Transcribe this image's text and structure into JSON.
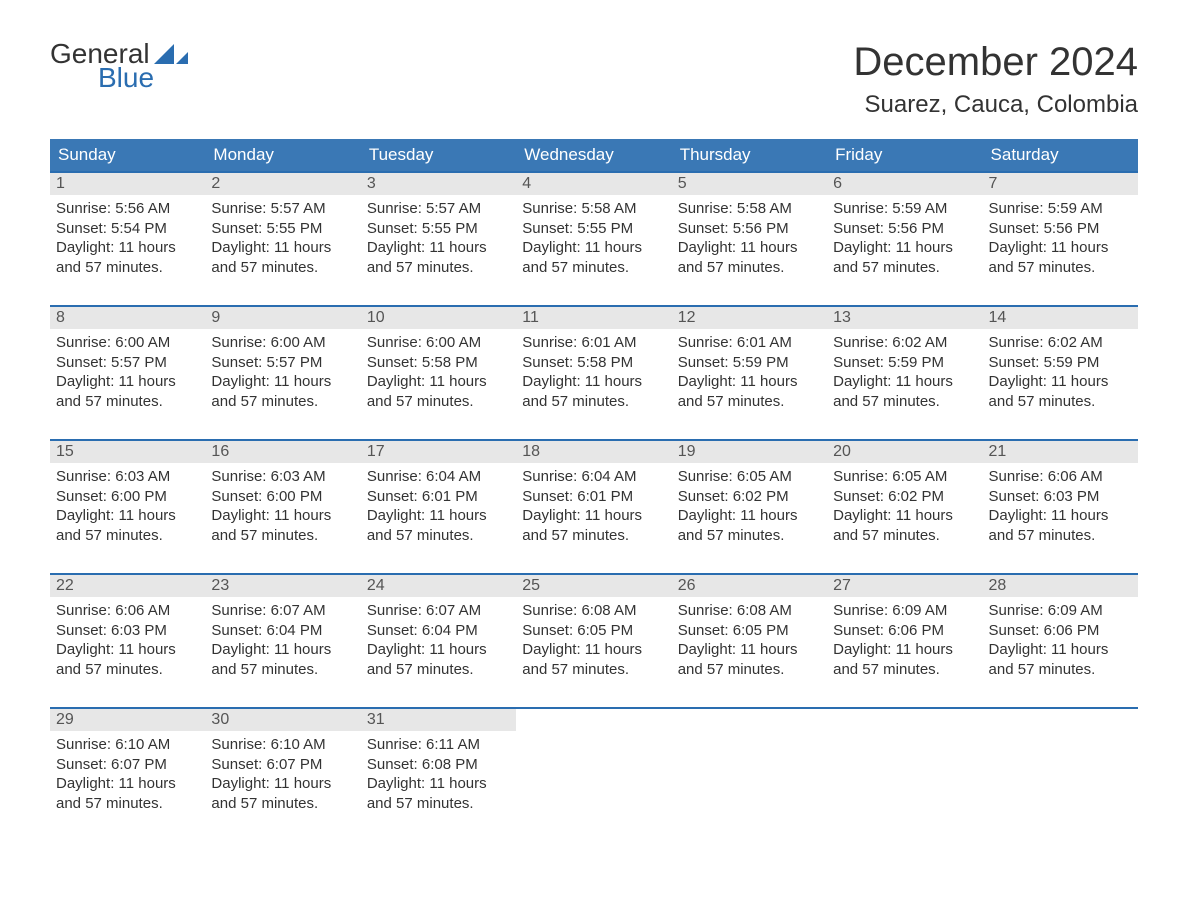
{
  "brand": {
    "part1": "General",
    "part2": "Blue",
    "accent": "#2a6db0"
  },
  "title": "December 2024",
  "location": "Suarez, Cauca, Colombia",
  "colors": {
    "header_bg": "#3a78b5",
    "header_text": "#ffffff",
    "week_border": "#2a6db0",
    "daynum_bg": "#e7e7e7",
    "body_text": "#333333",
    "page_bg": "#ffffff"
  },
  "day_names": [
    "Sunday",
    "Monday",
    "Tuesday",
    "Wednesday",
    "Thursday",
    "Friday",
    "Saturday"
  ],
  "labels": {
    "sunrise": "Sunrise:",
    "sunset": "Sunset:",
    "daylight": "Daylight:"
  },
  "daylight_common": "11 hours and 57 minutes.",
  "weeks": [
    [
      {
        "n": 1,
        "sr": "5:56 AM",
        "ss": "5:54 PM"
      },
      {
        "n": 2,
        "sr": "5:57 AM",
        "ss": "5:55 PM"
      },
      {
        "n": 3,
        "sr": "5:57 AM",
        "ss": "5:55 PM"
      },
      {
        "n": 4,
        "sr": "5:58 AM",
        "ss": "5:55 PM"
      },
      {
        "n": 5,
        "sr": "5:58 AM",
        "ss": "5:56 PM"
      },
      {
        "n": 6,
        "sr": "5:59 AM",
        "ss": "5:56 PM"
      },
      {
        "n": 7,
        "sr": "5:59 AM",
        "ss": "5:56 PM"
      }
    ],
    [
      {
        "n": 8,
        "sr": "6:00 AM",
        "ss": "5:57 PM"
      },
      {
        "n": 9,
        "sr": "6:00 AM",
        "ss": "5:57 PM"
      },
      {
        "n": 10,
        "sr": "6:00 AM",
        "ss": "5:58 PM"
      },
      {
        "n": 11,
        "sr": "6:01 AM",
        "ss": "5:58 PM"
      },
      {
        "n": 12,
        "sr": "6:01 AM",
        "ss": "5:59 PM"
      },
      {
        "n": 13,
        "sr": "6:02 AM",
        "ss": "5:59 PM"
      },
      {
        "n": 14,
        "sr": "6:02 AM",
        "ss": "5:59 PM"
      }
    ],
    [
      {
        "n": 15,
        "sr": "6:03 AM",
        "ss": "6:00 PM"
      },
      {
        "n": 16,
        "sr": "6:03 AM",
        "ss": "6:00 PM"
      },
      {
        "n": 17,
        "sr": "6:04 AM",
        "ss": "6:01 PM"
      },
      {
        "n": 18,
        "sr": "6:04 AM",
        "ss": "6:01 PM"
      },
      {
        "n": 19,
        "sr": "6:05 AM",
        "ss": "6:02 PM"
      },
      {
        "n": 20,
        "sr": "6:05 AM",
        "ss": "6:02 PM"
      },
      {
        "n": 21,
        "sr": "6:06 AM",
        "ss": "6:03 PM"
      }
    ],
    [
      {
        "n": 22,
        "sr": "6:06 AM",
        "ss": "6:03 PM"
      },
      {
        "n": 23,
        "sr": "6:07 AM",
        "ss": "6:04 PM"
      },
      {
        "n": 24,
        "sr": "6:07 AM",
        "ss": "6:04 PM"
      },
      {
        "n": 25,
        "sr": "6:08 AM",
        "ss": "6:05 PM"
      },
      {
        "n": 26,
        "sr": "6:08 AM",
        "ss": "6:05 PM"
      },
      {
        "n": 27,
        "sr": "6:09 AM",
        "ss": "6:06 PM"
      },
      {
        "n": 28,
        "sr": "6:09 AM",
        "ss": "6:06 PM"
      }
    ],
    [
      {
        "n": 29,
        "sr": "6:10 AM",
        "ss": "6:07 PM"
      },
      {
        "n": 30,
        "sr": "6:10 AM",
        "ss": "6:07 PM"
      },
      {
        "n": 31,
        "sr": "6:11 AM",
        "ss": "6:08 PM"
      },
      null,
      null,
      null,
      null
    ]
  ]
}
